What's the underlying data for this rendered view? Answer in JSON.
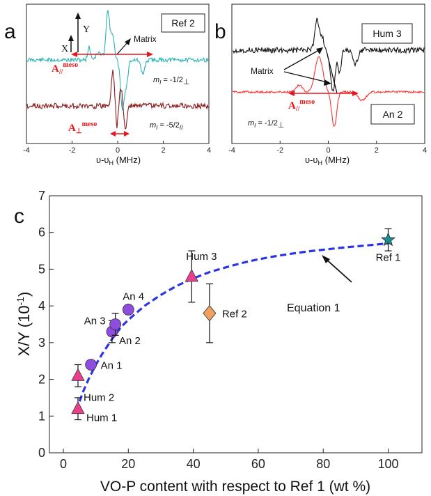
{
  "panels": {
    "a": {
      "letter": "a",
      "box_label": "Ref 2",
      "label_x": "X",
      "label_y": "Y",
      "label_matrix": "Matrix",
      "label_apar": "A",
      "label_apar_sub": "//",
      "label_apar_sup": "meso",
      "label_aperp": "A",
      "label_aperp_sub": "⊥",
      "label_aperp_sup": "meso",
      "ml_top": "m",
      "ml_top_rest": " = -1/2",
      "ml_top_sub": "⊥",
      "ml_bottom": "m",
      "ml_bottom_rest": " = -5/2",
      "ml_bottom_sub": "//",
      "ml_italic_sub": "I",
      "xlabel": "υ-υ",
      "xlabel_sub": "H",
      "xlabel_unit": " (MHz)",
      "xticks": [
        "-4",
        "-2",
        "0",
        "2",
        "4"
      ]
    },
    "b": {
      "letter": "b",
      "box_top": "Hum 3",
      "box_bottom": "An 2",
      "label_matrix": "Matrix",
      "label_apar": "A",
      "label_apar_sub": "//",
      "label_apar_sup": "meso",
      "ml": "m",
      "ml_rest": " = -1/2",
      "ml_sub": "⊥",
      "ml_italic_sub": "I",
      "xlabel": "υ-υ",
      "xlabel_sub": "H",
      "xlabel_unit": " (MHz)",
      "xticks": [
        "-4",
        "-2",
        "0",
        "2",
        "4"
      ]
    },
    "c": {
      "letter": "c",
      "annotation": "Equation 1"
    }
  },
  "colors": {
    "teal": "#2ab3b3",
    "darkred": "#8b1a1a",
    "black": "#111111",
    "red": "#ff3030",
    "arrow_red": "#e8141e",
    "curve_blue": "#2a34e6",
    "triangle": "#e8408f",
    "circle": "#8f4de0",
    "diamond": "#f0a060",
    "star": "#1b8f8f"
  },
  "chart_data": {
    "type": "scatter",
    "xlabel": "VO-P content with respect to Ref 1 (wt %)",
    "ylabel": "X/Y (10",
    "ylabel_sup": "-1",
    "ylabel_end": ")",
    "xlim": [
      0,
      100
    ],
    "ylim": [
      0,
      7
    ],
    "xticks": [
      "0",
      "20",
      "40",
      "60",
      "80",
      "100"
    ],
    "yticks": [
      "0",
      "1",
      "2",
      "3",
      "4",
      "5",
      "6",
      "7"
    ],
    "points": [
      {
        "label": "Hum 1",
        "x": 4.5,
        "y": 1.2,
        "err": 0.3,
        "marker": "triangle"
      },
      {
        "label": "Hum 2",
        "x": 4.5,
        "y": 2.1,
        "err": 0.3,
        "marker": "triangle"
      },
      {
        "label": "An 1",
        "x": 8.5,
        "y": 2.4,
        "err": 0,
        "marker": "circle"
      },
      {
        "label": "An 2",
        "x": 15.0,
        "y": 3.3,
        "err": 0.3,
        "marker": "circle"
      },
      {
        "label": "An 3",
        "x": 16.0,
        "y": 3.5,
        "err": 0.3,
        "marker": "circle"
      },
      {
        "label": "An 4",
        "x": 20.0,
        "y": 3.9,
        "err": 0,
        "marker": "circle"
      },
      {
        "label": "Hum 3",
        "x": 39.5,
        "y": 4.8,
        "err": 0.7,
        "marker": "triangle"
      },
      {
        "label": "Ref 2",
        "x": 45.0,
        "y": 3.8,
        "err": 0.8,
        "marker": "diamond"
      },
      {
        "label": "Ref 1",
        "x": 100.0,
        "y": 5.8,
        "err": 0.3,
        "marker": "star"
      }
    ],
    "curve": {
      "name": "Equation 1",
      "x": [
        4,
        6,
        8,
        10,
        12,
        15,
        18,
        21,
        25,
        30,
        35,
        40,
        45,
        50,
        55,
        60,
        65,
        70,
        75,
        80,
        85,
        90,
        95,
        100
      ],
      "y": [
        1.15,
        1.65,
        2.05,
        2.4,
        2.7,
        3.1,
        3.45,
        3.7,
        4.0,
        4.3,
        4.55,
        4.75,
        4.92,
        5.05,
        5.17,
        5.27,
        5.35,
        5.42,
        5.48,
        5.53,
        5.58,
        5.62,
        5.66,
        5.7
      ]
    }
  }
}
